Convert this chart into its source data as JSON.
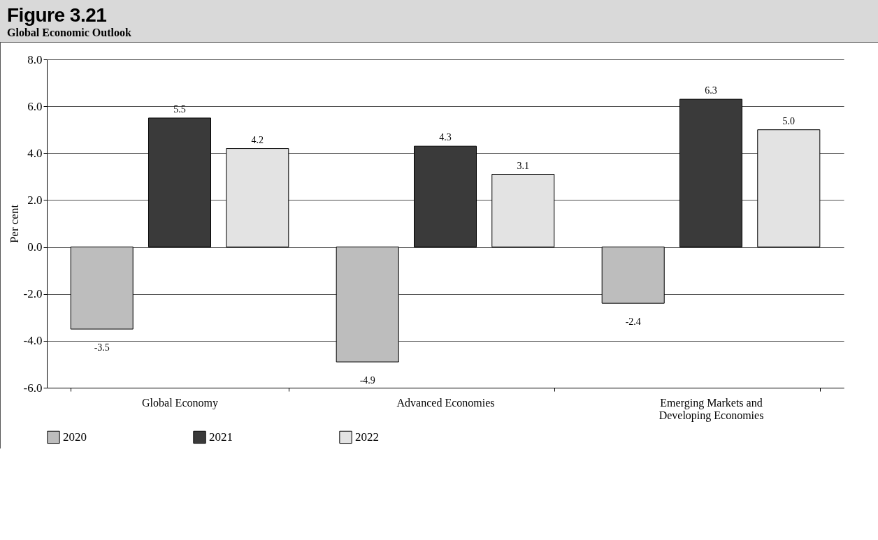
{
  "chart_data": {
    "type": "bar",
    "title": "Figure 3.21",
    "subtitle": "Global Economic Outlook",
    "ylabel": "Per cent",
    "categories": [
      "Global Economy",
      "Advanced Economies",
      "Emerging Markets and Developing Economies"
    ],
    "series": [
      {
        "name": "2020",
        "color": "#bdbdbd",
        "values": [
          -3.5,
          -4.9,
          -2.4
        ],
        "value_labels": [
          "-3.5",
          "-4.9",
          "-2.4"
        ]
      },
      {
        "name": "2021",
        "color": "#3a3a3a",
        "values": [
          5.5,
          4.3,
          6.3
        ],
        "value_labels": [
          "5.5",
          "4.3",
          "6.3"
        ]
      },
      {
        "name": "2022",
        "color": "#e3e3e3",
        "values": [
          4.2,
          3.1,
          5.0
        ],
        "value_labels": [
          "4.2",
          "3.1",
          "5.0"
        ]
      }
    ],
    "ylim": [
      -6,
      8
    ],
    "yticks": [
      {
        "value": -6,
        "label": "-6.0"
      },
      {
        "value": -4,
        "label": "-4.0"
      },
      {
        "value": -2,
        "label": "-2.0"
      },
      {
        "value": 0,
        "label": "0.0"
      },
      {
        "value": 2,
        "label": "2.0"
      },
      {
        "value": 4,
        "label": "4.0"
      },
      {
        "value": 6,
        "label": "6.0"
      },
      {
        "value": 8,
        "label": "8.0"
      }
    ],
    "grid": "y",
    "legend": "bottom"
  }
}
